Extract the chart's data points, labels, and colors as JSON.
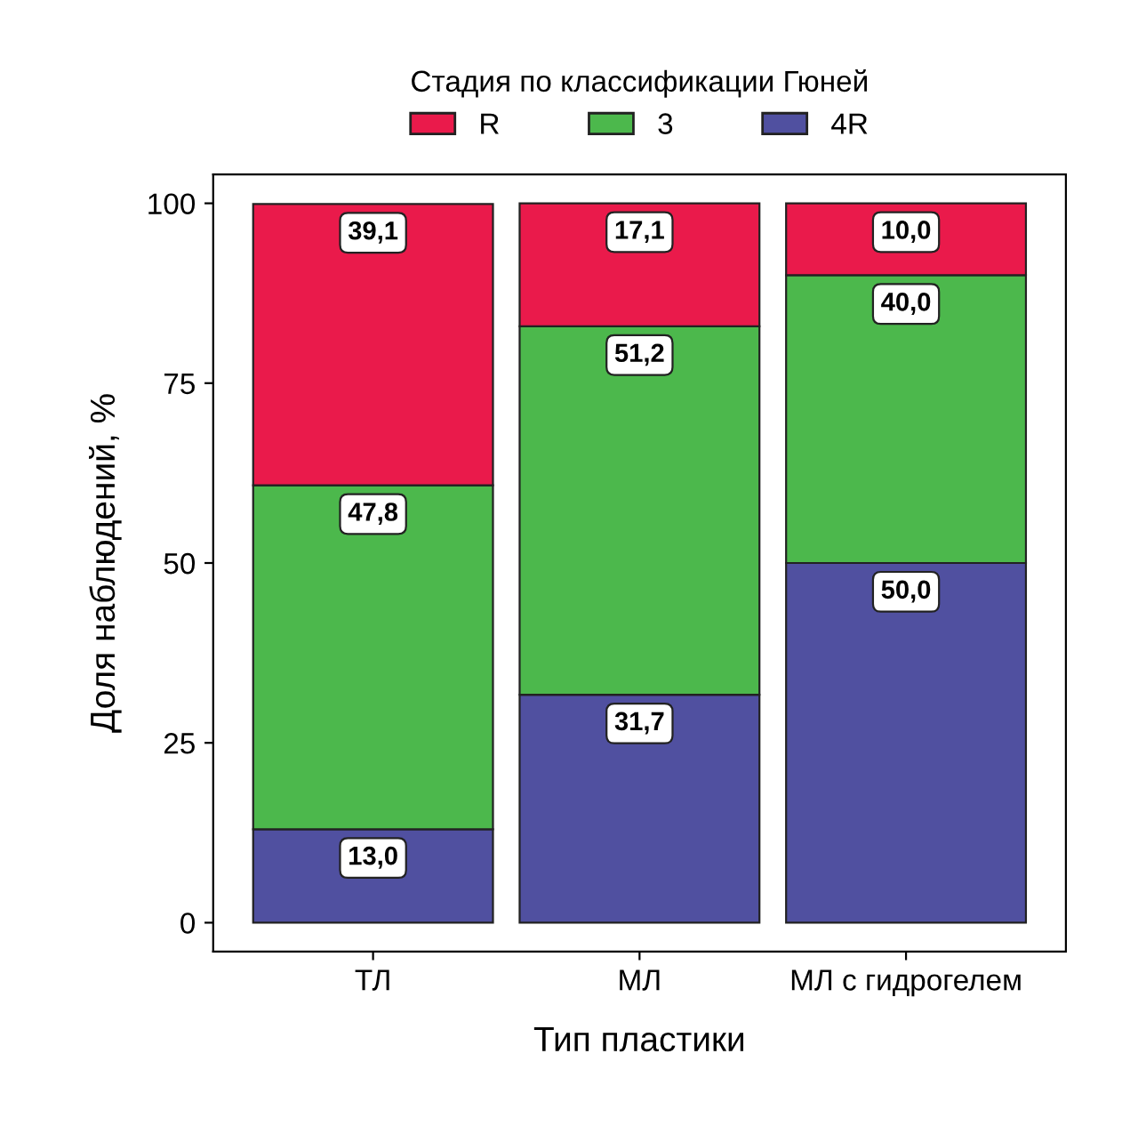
{
  "chart_data": {
    "type": "bar",
    "stacked": true,
    "xlabel": "Тип пластики",
    "ylabel": "Доля наблюдений, %",
    "legend_title": "Стадия по классификации Гюней",
    "legend": "top",
    "categories": [
      "ТЛ",
      "МЛ",
      "МЛ с гидрогелем"
    ],
    "series": [
      {
        "name": "4R",
        "color": "#5050a0",
        "values": [
          13.0,
          31.7,
          50.0
        ],
        "value_labels": [
          "13,0",
          "31,7",
          "50,0"
        ]
      },
      {
        "name": "3",
        "color": "#4cb84c",
        "values": [
          47.8,
          51.2,
          40.0
        ],
        "value_labels": [
          "47,8",
          "51,2",
          "40,0"
        ]
      },
      {
        "name": "R",
        "color": "#ea1a4b",
        "values": [
          39.1,
          17.1,
          10.0
        ],
        "value_labels": [
          "39,1",
          "17,1",
          "10,0"
        ]
      }
    ],
    "ylim": [
      -4,
      104
    ],
    "yticks": [
      0,
      25,
      50,
      75,
      100
    ]
  }
}
